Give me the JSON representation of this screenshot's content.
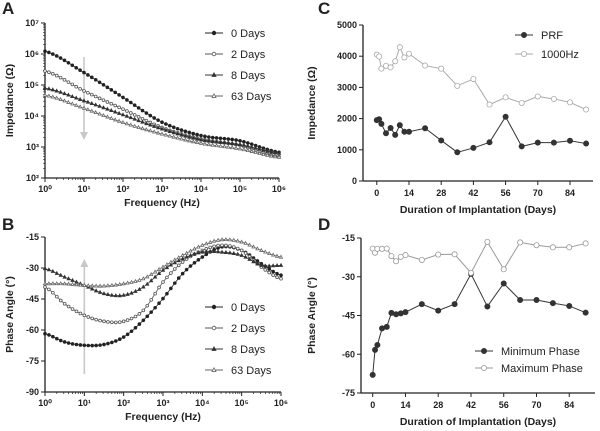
{
  "chart_data": [
    {
      "panel": "A",
      "type": "line",
      "xlabel": "Frequency (Hz)",
      "ylabel": "Impedance (Ω)",
      "xscale": "log",
      "yscale": "log",
      "xlim_log10": [
        0,
        6
      ],
      "ylim_log10": [
        2,
        7
      ],
      "xtick_labels": [
        "10⁰",
        "10¹",
        "10²",
        "10³",
        "10⁴",
        "10⁵",
        "10⁶"
      ],
      "ytick_labels": [
        "10²",
        "10³",
        "10⁴",
        "10⁵",
        "10⁶",
        "10⁷"
      ],
      "legend_position": "top-right",
      "annotation": "downward arrow at 10 Hz",
      "x_log10": [
        0,
        1,
        2,
        3,
        4,
        5,
        6
      ],
      "series": [
        {
          "name": "0 Days",
          "marker": "filled-circle",
          "color": "#222222",
          "log10_values": [
            6.09,
            5.4,
            4.6,
            3.8,
            3.37,
            3.2,
            2.83
          ]
        },
        {
          "name": "2 Days",
          "marker": "open-circle",
          "color": "#555555",
          "log10_values": [
            5.45,
            4.81,
            4.22,
            3.63,
            3.26,
            3.05,
            2.69
          ]
        },
        {
          "name": "8 Days",
          "marker": "filled-triangle",
          "color": "#333333",
          "log10_values": [
            4.9,
            4.49,
            4.04,
            3.58,
            3.23,
            3.08,
            2.8
          ]
        },
        {
          "name": "63 Days",
          "marker": "open-triangle",
          "color": "#666666",
          "log10_values": [
            4.67,
            4.25,
            3.79,
            3.42,
            3.12,
            2.94,
            2.67
          ]
        }
      ]
    },
    {
      "panel": "B",
      "type": "line",
      "xlabel": "Frequency (Hz)",
      "ylabel": "Phase  Angle (°)",
      "xscale": "log",
      "xlim_log10": [
        0,
        6
      ],
      "ylim": [
        -90,
        -15
      ],
      "xtick_labels": [
        "10⁰",
        "10¹",
        "10²",
        "10³",
        "10⁴",
        "10⁵",
        "10⁶"
      ],
      "ytick_values": [
        -90,
        -75,
        -60,
        -45,
        -30,
        -15
      ],
      "ytick_labels": [
        "-90",
        "-75",
        "-60",
        "-45",
        "-30",
        "-15"
      ],
      "legend_position": "bottom-right",
      "annotation": "upward arrow at 10 Hz",
      "x_log10": [
        0,
        0.5,
        1,
        1.5,
        2,
        2.5,
        3,
        3.5,
        4,
        4.5,
        5,
        5.5,
        6
      ],
      "series": [
        {
          "name": "0 Days",
          "marker": "filled-circle",
          "color": "#222222",
          "values": [
            -61.8,
            -65.8,
            -67.4,
            -67.0,
            -63.4,
            -55.3,
            -44.8,
            -32.7,
            -24.7,
            -19.8,
            -21.5,
            -27.9,
            -33.5
          ]
        },
        {
          "name": "2 Days",
          "marker": "open-circle",
          "color": "#555555",
          "values": [
            -39.2,
            -47.3,
            -52.9,
            -55.8,
            -55.8,
            -50.5,
            -36.8,
            -27.1,
            -21.5,
            -19.0,
            -21.5,
            -29.5,
            -35.2
          ]
        },
        {
          "name": "8 Days",
          "marker": "filled-triangle",
          "color": "#333333",
          "values": [
            -30.3,
            -34.4,
            -38.4,
            -42.4,
            -43.2,
            -39.2,
            -31.1,
            -25.5,
            -22.3,
            -22.3,
            -23.9,
            -28.7,
            -28.7
          ]
        },
        {
          "name": "63 Days",
          "marker": "open-triangle",
          "color": "#666666",
          "values": [
            -37.6,
            -37.6,
            -38.4,
            -38.7,
            -37.6,
            -35.2,
            -29.5,
            -23.9,
            -19.0,
            -16.3,
            -17.4,
            -21.5,
            -24.7
          ]
        }
      ]
    },
    {
      "panel": "C",
      "type": "line",
      "xlabel": "Duration of Implantation (Days)",
      "ylabel": "Impedance (Ω)",
      "xlim": [
        -6,
        94
      ],
      "ylim": [
        0,
        5000
      ],
      "xtick_values": [
        0,
        14,
        28,
        42,
        56,
        70,
        84
      ],
      "xtick_labels": [
        "0",
        "14",
        "28",
        "42",
        "56",
        "70",
        "84"
      ],
      "ytick_values": [
        0,
        1000,
        2000,
        3000,
        4000,
        5000
      ],
      "ytick_labels": [
        "0",
        "1000",
        "2000",
        "3000",
        "4000",
        "5000"
      ],
      "legend_position": "top-right",
      "x": [
        0,
        1,
        2,
        4,
        6,
        8,
        10,
        12,
        14,
        21,
        28,
        35,
        42,
        49,
        56,
        63,
        70,
        77,
        84,
        91
      ],
      "series": [
        {
          "name": "PRF",
          "marker": "filled-circle",
          "color": "#333333",
          "values": [
            1950,
            1980,
            1830,
            1530,
            1700,
            1480,
            1790,
            1580,
            1580,
            1690,
            1300,
            920,
            1060,
            1240,
            2060,
            1110,
            1230,
            1230,
            1290,
            1200
          ]
        },
        {
          "name": "1000Hz",
          "marker": "open-circle",
          "color": "#aaaaaa",
          "values": [
            4050,
            3990,
            3600,
            3690,
            3640,
            3840,
            4290,
            3960,
            4080,
            3700,
            3600,
            3050,
            3270,
            2450,
            2680,
            2500,
            2710,
            2630,
            2520,
            2290
          ]
        }
      ]
    },
    {
      "panel": "D",
      "type": "line",
      "xlabel": "Duration of Implantation (Days)",
      "ylabel": "Phase  Angle (°)",
      "xlim": [
        -5,
        95
      ],
      "ylim": [
        -75,
        -15
      ],
      "xtick_values": [
        0,
        14,
        28,
        42,
        56,
        70,
        84
      ],
      "xtick_labels": [
        "0",
        "14",
        "28",
        "42",
        "56",
        "70",
        "84"
      ],
      "ytick_values": [
        -75,
        -60,
        -45,
        -30,
        -15
      ],
      "ytick_labels": [
        "-75",
        "-60",
        "-45",
        "-30",
        "-15"
      ],
      "legend_position": "bottom-right",
      "x": [
        0,
        1,
        2,
        4,
        6,
        8,
        10,
        12,
        14,
        21,
        28,
        35,
        42,
        49,
        56,
        63,
        70,
        77,
        84,
        91
      ],
      "series": [
        {
          "name": "Minimum Phase",
          "marker": "filled-circle",
          "color": "#333333",
          "values": [
            -68,
            -58.3,
            -56.4,
            -50,
            -49.4,
            -44,
            -44.5,
            -44.2,
            -43.7,
            -40.6,
            -43.1,
            -40.6,
            -28.9,
            -41.5,
            -32.6,
            -39,
            -39,
            -40.2,
            -41.3,
            -43.9
          ]
        },
        {
          "name": "Maximum Phase",
          "marker": "open-circle",
          "color": "#999999",
          "values": [
            -19.1,
            -20.7,
            -19.2,
            -19.2,
            -19.1,
            -22,
            -24,
            -22.3,
            -21.6,
            -23.5,
            -21.4,
            -21.3,
            -28.5,
            -16.5,
            -27.1,
            -16.7,
            -17.8,
            -18.6,
            -18.6,
            -17.1
          ]
        }
      ]
    }
  ],
  "colors": {
    "axis": "#222222",
    "arrow": "#c8c8c8"
  }
}
